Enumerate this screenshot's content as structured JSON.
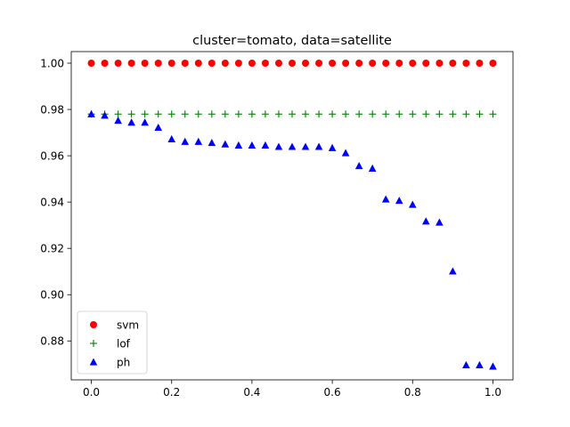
{
  "chart_data": {
    "type": "scatter",
    "title": "cluster=tomato, data=satellite",
    "xlabel": "",
    "ylabel": "",
    "xlim": [
      -0.05,
      1.05
    ],
    "ylim": [
      0.8632,
      1.005
    ],
    "x_ticks": [
      0.0,
      0.2,
      0.4,
      0.6,
      0.8,
      1.0
    ],
    "x_tick_labels": [
      "0.0",
      "0.2",
      "0.4",
      "0.6",
      "0.8",
      "1.0"
    ],
    "y_ticks": [
      0.88,
      0.9,
      0.92,
      0.94,
      0.96,
      0.98,
      1.0
    ],
    "y_tick_labels": [
      "0.88",
      "0.90",
      "0.92",
      "0.94",
      "0.96",
      "0.98",
      "1.00"
    ],
    "grid": false,
    "legend_position": "lower-left",
    "x": [
      0.0,
      0.0333,
      0.0667,
      0.1,
      0.1333,
      0.1667,
      0.2,
      0.2333,
      0.2667,
      0.3,
      0.3333,
      0.3667,
      0.4,
      0.4333,
      0.4667,
      0.5,
      0.5333,
      0.5667,
      0.6,
      0.6333,
      0.6667,
      0.7,
      0.7333,
      0.7667,
      0.8,
      0.8333,
      0.8667,
      0.9,
      0.9333,
      0.9667,
      1.0
    ],
    "series": [
      {
        "name": "svm",
        "color": "#ff0000",
        "marker": "circle",
        "values": [
          1.0,
          1.0,
          1.0,
          1.0,
          1.0,
          1.0,
          1.0,
          1.0,
          1.0,
          1.0,
          1.0,
          1.0,
          1.0,
          1.0,
          1.0,
          1.0,
          1.0,
          1.0,
          1.0,
          1.0,
          1.0,
          1.0,
          1.0,
          1.0,
          1.0,
          1.0,
          1.0,
          1.0,
          1.0,
          1.0,
          1.0
        ]
      },
      {
        "name": "lof",
        "color": "#008000",
        "marker": "plus",
        "values": [
          0.978,
          0.978,
          0.978,
          0.978,
          0.978,
          0.978,
          0.978,
          0.978,
          0.978,
          0.978,
          0.978,
          0.978,
          0.978,
          0.978,
          0.978,
          0.978,
          0.978,
          0.978,
          0.978,
          0.978,
          0.978,
          0.978,
          0.978,
          0.978,
          0.978,
          0.978,
          0.978,
          0.978,
          0.978,
          0.978,
          0.978
        ]
      },
      {
        "name": "ph",
        "color": "#0000ff",
        "marker": "triangle",
        "values": [
          0.978,
          0.9774,
          0.9752,
          0.9744,
          0.9744,
          0.9722,
          0.9672,
          0.9661,
          0.9661,
          0.9656,
          0.965,
          0.9645,
          0.9645,
          0.9645,
          0.9639,
          0.9639,
          0.9639,
          0.9639,
          0.9634,
          0.9612,
          0.9556,
          0.9545,
          0.9412,
          0.9406,
          0.9389,
          0.9317,
          0.9312,
          0.9101,
          0.8696,
          0.8696,
          0.869
        ]
      }
    ]
  }
}
